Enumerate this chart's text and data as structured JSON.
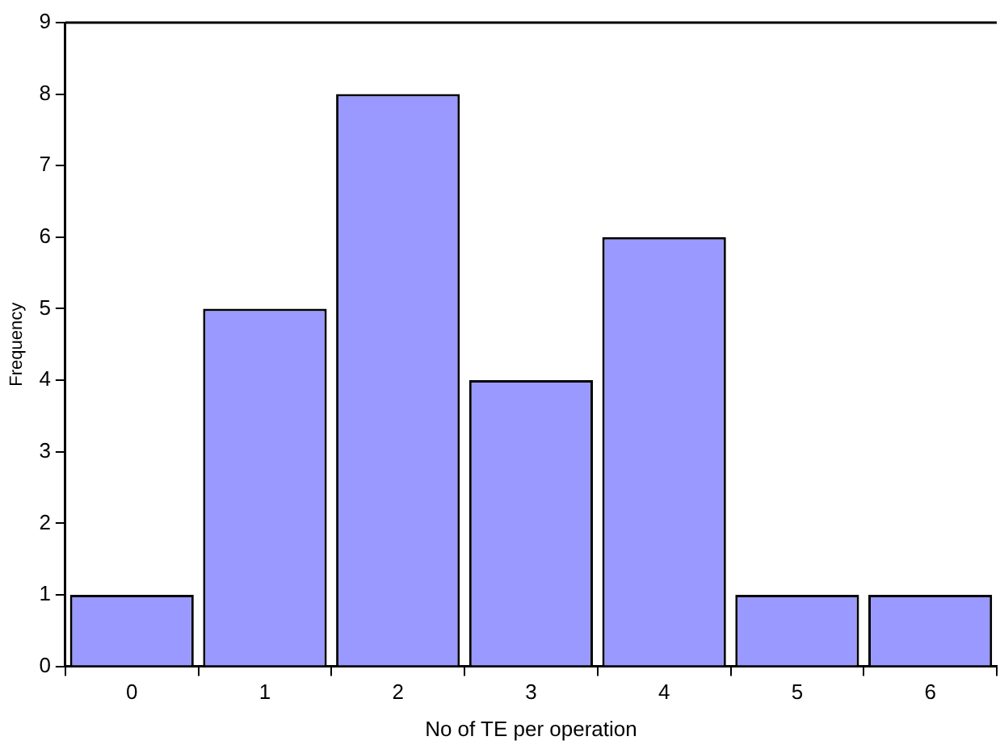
{
  "chart_data": {
    "type": "bar",
    "categories": [
      "0",
      "1",
      "2",
      "3",
      "4",
      "5",
      "6"
    ],
    "values": [
      1,
      5,
      8,
      4,
      6,
      1,
      1
    ],
    "color": "#9999ff",
    "xlabel": "No of TE per operation",
    "ylabel": "Frequency",
    "ylim": [
      0,
      9
    ],
    "yticks": [
      0,
      1,
      2,
      3,
      4,
      5,
      6,
      7,
      8,
      9
    ]
  }
}
